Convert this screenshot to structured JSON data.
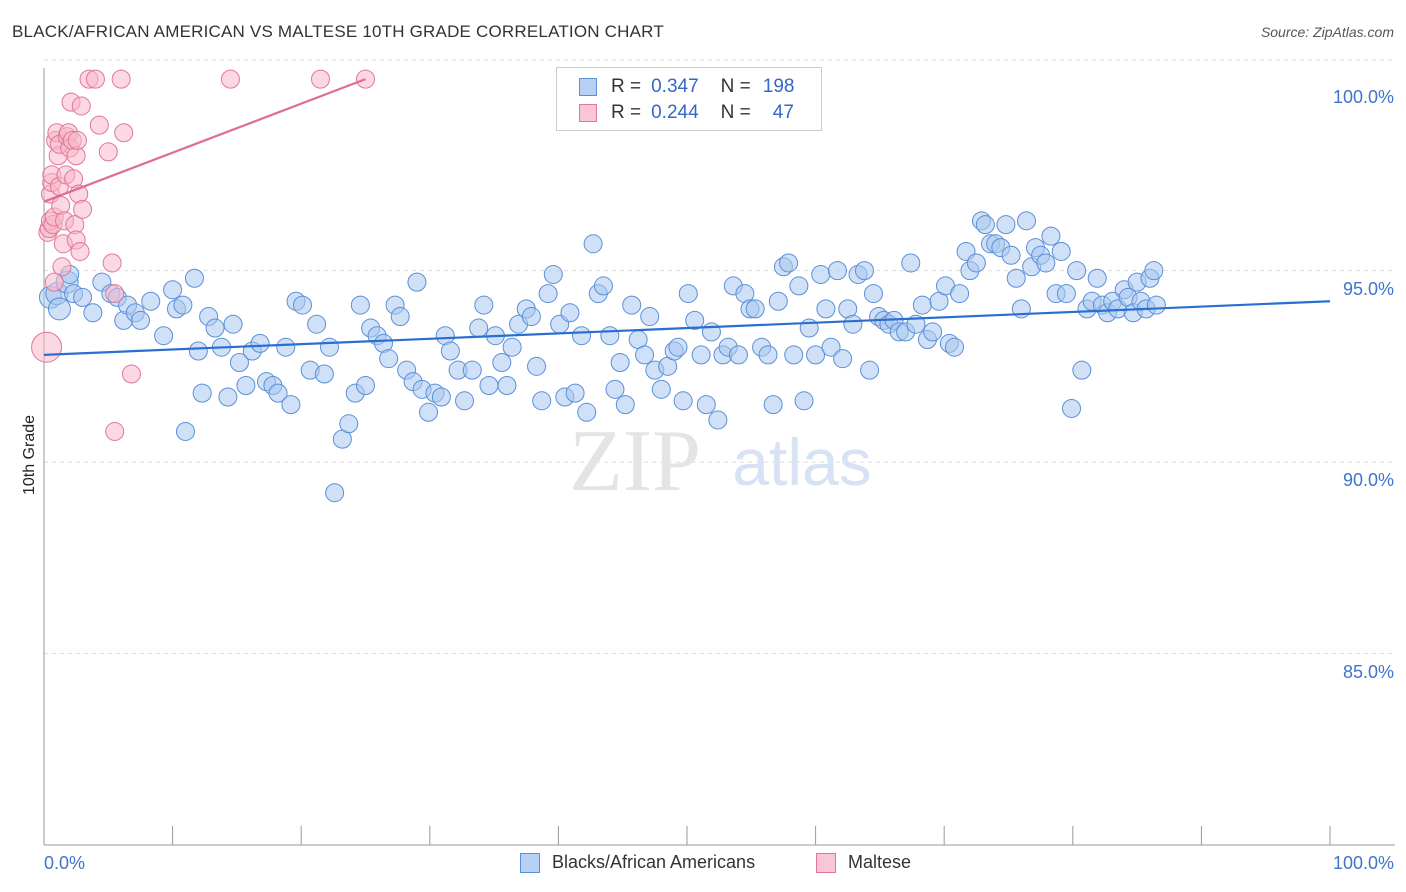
{
  "title": "BLACK/AFRICAN AMERICAN VS MALTESE 10TH GRADE CORRELATION CHART",
  "source": "Source: ZipAtlas.com",
  "watermark": {
    "zip": "ZIP",
    "atlas": "atlas"
  },
  "colors": {
    "blue_fill": "#a9c8f0",
    "blue_stroke": "#5b8fd8",
    "blue_line": "#2a6fcf",
    "pink_fill": "#f7b8cb",
    "pink_stroke": "#e07799",
    "pink_line": "#e06c93",
    "tick_text": "#3f73cc",
    "grid": "#dddddd"
  },
  "legend": {
    "rows": [
      {
        "r_label": "R =",
        "r_value": "0.347",
        "n_label": "N =",
        "n_value": "198"
      },
      {
        "r_label": "R =",
        "r_value": "0.244",
        "n_label": "N =",
        "n_value": "47"
      }
    ]
  },
  "bottom_legend": [
    "Blacks/African Americans",
    "Maltese"
  ],
  "chart_data": {
    "type": "scatter",
    "title": "BLACK/AFRICAN AMERICAN VS MALTESE 10TH GRADE CORRELATION CHART",
    "xlabel": "",
    "ylabel": "10th Grade",
    "xlim": [
      0,
      100
    ],
    "ylim": [
      80,
      100.5
    ],
    "x_tick_labels": [
      "0.0%",
      "100.0%"
    ],
    "y_tick_labels": [
      "100.0%",
      "95.0%",
      "90.0%",
      "85.0%"
    ],
    "y_ticks": [
      100,
      95,
      90,
      85
    ],
    "grid": true,
    "legend_position": "top-center",
    "series": [
      {
        "name": "Blacks/African Americans",
        "r": 0.347,
        "n": 198,
        "trend": {
          "x": [
            0,
            100
          ],
          "y": [
            92.8,
            94.2
          ]
        },
        "points": [
          [
            0.5,
            94.3
          ],
          [
            1,
            94.4
          ],
          [
            1.2,
            94.0
          ],
          [
            1.8,
            94.7
          ],
          [
            2,
            94.9
          ],
          [
            2.3,
            94.4
          ],
          [
            3,
            94.3
          ],
          [
            3.8,
            93.9
          ],
          [
            4.5,
            94.7
          ],
          [
            5.2,
            94.4
          ],
          [
            5.7,
            94.3
          ],
          [
            6.2,
            93.7
          ],
          [
            6.5,
            94.1
          ],
          [
            7.1,
            93.9
          ],
          [
            7.5,
            93.7
          ],
          [
            8.3,
            94.2
          ],
          [
            9.3,
            93.3
          ],
          [
            10,
            94.5
          ],
          [
            10.3,
            94.0
          ],
          [
            10.8,
            94.1
          ],
          [
            11,
            90.8
          ],
          [
            11.7,
            94.8
          ],
          [
            12,
            92.9
          ],
          [
            12.3,
            91.8
          ],
          [
            12.8,
            93.8
          ],
          [
            13.3,
            93.5
          ],
          [
            13.8,
            93.0
          ],
          [
            14.3,
            91.7
          ],
          [
            14.7,
            93.6
          ],
          [
            15.2,
            92.6
          ],
          [
            15.7,
            92.0
          ],
          [
            16.2,
            92.9
          ],
          [
            16.8,
            93.1
          ],
          [
            17.3,
            92.1
          ],
          [
            17.8,
            92.0
          ],
          [
            18.2,
            91.8
          ],
          [
            18.8,
            93.0
          ],
          [
            19.2,
            91.5
          ],
          [
            19.6,
            94.2
          ],
          [
            20.1,
            94.1
          ],
          [
            20.7,
            92.4
          ],
          [
            21.2,
            93.6
          ],
          [
            21.8,
            92.3
          ],
          [
            22.2,
            93.0
          ],
          [
            22.6,
            89.2
          ],
          [
            23.2,
            90.6
          ],
          [
            23.7,
            91.0
          ],
          [
            24.2,
            91.8
          ],
          [
            24.6,
            94.1
          ],
          [
            25,
            92.0
          ],
          [
            25.4,
            93.5
          ],
          [
            25.9,
            93.3
          ],
          [
            26.4,
            93.1
          ],
          [
            26.8,
            92.7
          ],
          [
            27.3,
            94.1
          ],
          [
            27.7,
            93.8
          ],
          [
            28.2,
            92.4
          ],
          [
            28.7,
            92.1
          ],
          [
            29,
            94.7
          ],
          [
            29.4,
            91.9
          ],
          [
            29.9,
            91.3
          ],
          [
            30.4,
            91.8
          ],
          [
            30.9,
            91.7
          ],
          [
            31.2,
            93.3
          ],
          [
            31.6,
            92.9
          ],
          [
            32.2,
            92.4
          ],
          [
            32.7,
            91.6
          ],
          [
            33.3,
            92.4
          ],
          [
            33.8,
            93.5
          ],
          [
            34.2,
            94.1
          ],
          [
            34.6,
            92.0
          ],
          [
            35.1,
            93.3
          ],
          [
            35.6,
            92.6
          ],
          [
            36,
            92.0
          ],
          [
            36.4,
            93.0
          ],
          [
            36.9,
            93.6
          ],
          [
            37.5,
            94.0
          ],
          [
            37.9,
            93.8
          ],
          [
            38.3,
            92.5
          ],
          [
            38.7,
            91.6
          ],
          [
            39.2,
            94.4
          ],
          [
            39.6,
            94.9
          ],
          [
            40.1,
            93.6
          ],
          [
            40.5,
            91.7
          ],
          [
            40.9,
            93.9
          ],
          [
            41.3,
            91.8
          ],
          [
            41.8,
            93.3
          ],
          [
            42.2,
            91.3
          ],
          [
            42.7,
            95.7
          ],
          [
            43.1,
            94.4
          ],
          [
            43.5,
            94.6
          ],
          [
            44,
            93.3
          ],
          [
            44.4,
            91.9
          ],
          [
            44.8,
            92.6
          ],
          [
            45.2,
            91.5
          ],
          [
            45.7,
            94.1
          ],
          [
            46.2,
            93.2
          ],
          [
            46.7,
            92.8
          ],
          [
            47.1,
            93.8
          ],
          [
            47.5,
            92.4
          ],
          [
            48,
            91.9
          ],
          [
            48.5,
            92.5
          ],
          [
            49,
            92.9
          ],
          [
            49.3,
            93.0
          ],
          [
            49.7,
            91.6
          ],
          [
            50.1,
            94.4
          ],
          [
            50.6,
            93.7
          ],
          [
            51.1,
            92.8
          ],
          [
            51.5,
            91.5
          ],
          [
            51.9,
            93.4
          ],
          [
            52.4,
            91.1
          ],
          [
            52.8,
            92.8
          ],
          [
            53.2,
            93.0
          ],
          [
            53.6,
            94.6
          ],
          [
            54,
            92.8
          ],
          [
            54.5,
            94.4
          ],
          [
            54.9,
            94.0
          ],
          [
            55.3,
            94.0
          ],
          [
            55.8,
            93.0
          ],
          [
            56.3,
            92.8
          ],
          [
            56.7,
            91.5
          ],
          [
            57.1,
            94.2
          ],
          [
            57.5,
            95.1
          ],
          [
            57.9,
            95.2
          ],
          [
            58.3,
            92.8
          ],
          [
            58.7,
            94.6
          ],
          [
            59.1,
            91.6
          ],
          [
            59.5,
            93.5
          ],
          [
            60,
            92.8
          ],
          [
            60.4,
            94.9
          ],
          [
            60.8,
            94.0
          ],
          [
            61.2,
            93.0
          ],
          [
            61.7,
            95.0
          ],
          [
            62.1,
            92.7
          ],
          [
            62.5,
            94.0
          ],
          [
            62.9,
            93.6
          ],
          [
            63.3,
            94.9
          ],
          [
            63.8,
            95.0
          ],
          [
            64.2,
            92.4
          ],
          [
            64.5,
            94.4
          ],
          [
            64.9,
            93.8
          ],
          [
            65.3,
            93.7
          ],
          [
            65.7,
            93.6
          ],
          [
            66.1,
            93.7
          ],
          [
            66.5,
            93.4
          ],
          [
            67,
            93.4
          ],
          [
            67.4,
            95.2
          ],
          [
            67.8,
            93.6
          ],
          [
            68.3,
            94.1
          ],
          [
            68.7,
            93.2
          ],
          [
            69.1,
            93.4
          ],
          [
            69.6,
            94.2
          ],
          [
            70.1,
            94.6
          ],
          [
            70.4,
            93.1
          ],
          [
            70.8,
            93.0
          ],
          [
            71.2,
            94.4
          ],
          [
            71.7,
            95.5
          ],
          [
            72,
            95.0
          ],
          [
            72.5,
            95.2
          ],
          [
            72.9,
            96.3
          ],
          [
            73.2,
            96.2
          ],
          [
            73.6,
            95.7
          ],
          [
            74,
            95.7
          ],
          [
            74.4,
            95.6
          ],
          [
            74.8,
            96.2
          ],
          [
            75.2,
            95.4
          ],
          [
            75.6,
            94.8
          ],
          [
            76,
            94.0
          ],
          [
            76.4,
            96.3
          ],
          [
            76.8,
            95.1
          ],
          [
            77.1,
            95.6
          ],
          [
            77.5,
            95.4
          ],
          [
            77.9,
            95.2
          ],
          [
            78.3,
            95.9
          ],
          [
            78.7,
            94.4
          ],
          [
            79.1,
            95.5
          ],
          [
            79.5,
            94.4
          ],
          [
            79.9,
            91.4
          ],
          [
            80.3,
            95.0
          ],
          [
            80.7,
            92.4
          ],
          [
            81.1,
            94.0
          ],
          [
            81.5,
            94.2
          ],
          [
            81.9,
            94.8
          ],
          [
            82.3,
            94.1
          ],
          [
            82.7,
            93.9
          ],
          [
            83.1,
            94.2
          ],
          [
            83.5,
            94.0
          ],
          [
            84,
            94.5
          ],
          [
            84.3,
            94.3
          ],
          [
            84.7,
            93.9
          ],
          [
            85,
            94.7
          ],
          [
            85.3,
            94.2
          ],
          [
            85.7,
            94.0
          ],
          [
            86,
            94.8
          ],
          [
            86.3,
            95.0
          ],
          [
            86.5,
            94.1
          ]
        ]
      },
      {
        "name": "Maltese",
        "r": 0.244,
        "n": 47,
        "trend": {
          "x": [
            0,
            25
          ],
          "y": [
            96.8,
            100
          ]
        },
        "points": [
          [
            0.2,
            93.0
          ],
          [
            0.3,
            96.0
          ],
          [
            0.4,
            96.1
          ],
          [
            0.5,
            96.3
          ],
          [
            0.5,
            97.0
          ],
          [
            0.6,
            97.3
          ],
          [
            0.6,
            97.5
          ],
          [
            0.7,
            96.2
          ],
          [
            0.8,
            96.4
          ],
          [
            0.9,
            98.4
          ],
          [
            1,
            98.6
          ],
          [
            1.1,
            98.0
          ],
          [
            1.2,
            98.3
          ],
          [
            1.2,
            97.2
          ],
          [
            1.3,
            96.7
          ],
          [
            1.4,
            95.1
          ],
          [
            1.5,
            95.7
          ],
          [
            1.6,
            96.3
          ],
          [
            1.7,
            97.5
          ],
          [
            1.8,
            98.5
          ],
          [
            1.9,
            98.6
          ],
          [
            2.0,
            98.2
          ],
          [
            2.1,
            99.4
          ],
          [
            2.2,
            98.4
          ],
          [
            2.3,
            97.4
          ],
          [
            2.4,
            96.2
          ],
          [
            2.5,
            95.8
          ],
          [
            2.5,
            98.0
          ],
          [
            2.6,
            98.4
          ],
          [
            2.7,
            97.0
          ],
          [
            2.8,
            95.5
          ],
          [
            2.9,
            99.3
          ],
          [
            3.0,
            96.6
          ],
          [
            3.5,
            100.0
          ],
          [
            4,
            100.0
          ],
          [
            4.3,
            98.8
          ],
          [
            5,
            98.1
          ],
          [
            5.3,
            95.2
          ],
          [
            5.5,
            94.4
          ],
          [
            5.5,
            90.8
          ],
          [
            6,
            100.0
          ],
          [
            6.2,
            98.6
          ],
          [
            6.8,
            92.3
          ],
          [
            14.5,
            100.0
          ],
          [
            21.5,
            100.0
          ],
          [
            25,
            100.0
          ],
          [
            0.8,
            94.7
          ]
        ]
      }
    ]
  }
}
